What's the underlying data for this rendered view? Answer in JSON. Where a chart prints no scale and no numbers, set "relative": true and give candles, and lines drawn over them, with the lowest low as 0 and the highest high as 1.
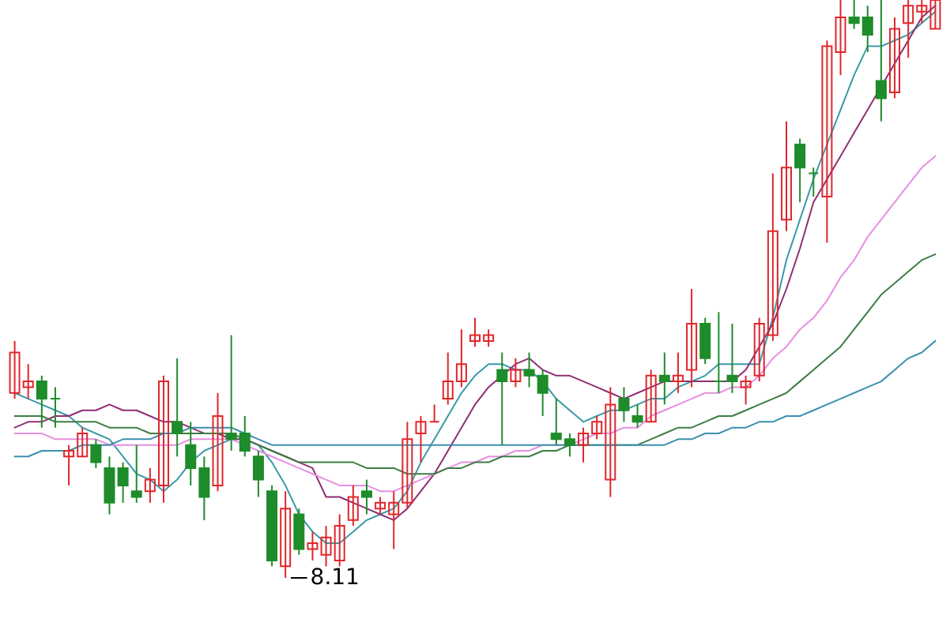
{
  "chart_data": {
    "type": "candlestick",
    "relative": true,
    "categories": [
      null,
      null,
      null,
      null,
      null,
      null,
      null,
      null,
      null,
      null,
      null,
      null,
      null,
      null,
      null,
      null,
      null,
      null,
      null,
      null,
      null,
      null,
      null,
      null,
      null,
      null,
      null,
      null,
      null,
      null,
      null,
      null,
      null,
      null,
      null,
      null,
      null,
      null,
      null,
      null,
      null,
      null,
      null,
      null,
      null,
      null,
      null,
      null,
      null,
      null,
      null,
      null,
      null,
      null,
      null,
      null,
      null,
      null,
      null,
      null,
      null,
      null,
      null,
      null,
      null,
      null,
      null,
      null,
      null
    ],
    "ohlc": [
      [
        0.32,
        0.41,
        0.31,
        0.39
      ],
      [
        0.33,
        0.37,
        0.31,
        0.34
      ],
      [
        0.34,
        0.35,
        0.26,
        0.31
      ],
      [
        0.31,
        0.33,
        0.26,
        0.31
      ],
      [
        0.21,
        0.23,
        0.16,
        0.22
      ],
      [
        0.21,
        0.26,
        0.21,
        0.25
      ],
      [
        0.23,
        0.24,
        0.19,
        0.2
      ],
      [
        0.19,
        0.21,
        0.11,
        0.13
      ],
      [
        0.19,
        0.2,
        0.13,
        0.16
      ],
      [
        0.15,
        0.23,
        0.13,
        0.14
      ],
      [
        0.15,
        0.19,
        0.13,
        0.17
      ],
      [
        0.16,
        0.35,
        0.13,
        0.34
      ],
      [
        0.27,
        0.38,
        0.21,
        0.25
      ],
      [
        0.23,
        0.27,
        0.16,
        0.19
      ],
      [
        0.19,
        0.21,
        0.1,
        0.14
      ],
      [
        0.16,
        0.32,
        0.15,
        0.28
      ],
      [
        0.25,
        0.42,
        0.22,
        0.24
      ],
      [
        0.25,
        0.28,
        0.21,
        0.22
      ],
      [
        0.21,
        0.22,
        0.14,
        0.17
      ],
      [
        0.15,
        0.16,
        0.02,
        0.03
      ],
      [
        0.02,
        0.15,
        0,
        0.12
      ],
      [
        0.11,
        0.12,
        0.04,
        0.05
      ],
      [
        0.05,
        0.08,
        0.03,
        0.06
      ],
      [
        0.04,
        0.09,
        0.02,
        0.07
      ],
      [
        0.03,
        0.11,
        0.02,
        0.09
      ],
      [
        0.1,
        0.16,
        0.09,
        0.14
      ],
      [
        0.15,
        0.17,
        0.11,
        0.14
      ],
      [
        0.12,
        0.14,
        0.11,
        0.13
      ],
      [
        0.11,
        0.15,
        0.05,
        0.13
      ],
      [
        0.13,
        0.27,
        0.12,
        0.24
      ],
      [
        0.25,
        0.28,
        0.2,
        0.27
      ],
      [
        0.27,
        0.3,
        0.27,
        0.27
      ],
      [
        0.31,
        0.39,
        0.3,
        0.34
      ],
      [
        0.34,
        0.43,
        0.33,
        0.37
      ],
      [
        0.41,
        0.45,
        0.4,
        0.42
      ],
      [
        0.41,
        0.43,
        0.4,
        0.42
      ],
      [
        0.36,
        0.39,
        0.23,
        0.34
      ],
      [
        0.34,
        0.38,
        0.33,
        0.36
      ],
      [
        0.36,
        0.39,
        0.33,
        0.35
      ],
      [
        0.35,
        0.36,
        0.28,
        0.32
      ],
      [
        0.25,
        0.31,
        0.23,
        0.24
      ],
      [
        0.24,
        0.25,
        0.21,
        0.23
      ],
      [
        0.23,
        0.26,
        0.2,
        0.25
      ],
      [
        0.25,
        0.28,
        0.24,
        0.27
      ],
      [
        0.17,
        0.33,
        0.14,
        0.3
      ],
      [
        0.31,
        0.33,
        0.27,
        0.29
      ],
      [
        0.28,
        0.3,
        0.26,
        0.27
      ],
      [
        0.27,
        0.36,
        0.27,
        0.35
      ],
      [
        0.35,
        0.39,
        0.3,
        0.34
      ],
      [
        0.34,
        0.39,
        0.32,
        0.35
      ],
      [
        0.36,
        0.5,
        0.33,
        0.44
      ],
      [
        0.44,
        0.45,
        0.37,
        0.38
      ],
      [
        0.34,
        0.46,
        0.32,
        0.34
      ],
      [
        0.35,
        0.44,
        0.32,
        0.34
      ],
      [
        0.33,
        0.35,
        0.3,
        0.34
      ],
      [
        0.35,
        0.45,
        0.34,
        0.44
      ],
      [
        0.42,
        0.7,
        0.41,
        0.6
      ],
      [
        0.62,
        0.79,
        0.6,
        0.71
      ],
      [
        0.75,
        0.76,
        0.65,
        0.71
      ],
      [
        0.7,
        0.71,
        0.66,
        0.7
      ],
      [
        0.66,
        0.93,
        0.58,
        0.92
      ],
      [
        0.91,
        1,
        0.87,
        0.97
      ],
      [
        0.97,
        1,
        0.95,
        0.96
      ],
      [
        0.97,
        0.99,
        0.91,
        0.94
      ],
      [
        0.86,
        1,
        0.79,
        0.83
      ],
      [
        0.84,
        0.97,
        0.83,
        0.95
      ],
      [
        0.96,
        1,
        0.9,
        0.99
      ],
      [
        0.98,
        1,
        0.96,
        0.99
      ],
      [
        0.95,
        1,
        0.95,
        1
      ]
    ],
    "colors": [
      "#e0262c",
      "#e0262c",
      "#1e8c2a",
      "#1e8c2a",
      "#e0262c",
      "#e0262c",
      "#1e8c2a",
      "#1e8c2a",
      "#1e8c2a",
      "#1e8c2a",
      "#e0262c",
      "#e0262c",
      "#1e8c2a",
      "#1e8c2a",
      "#1e8c2a",
      "#e0262c",
      "#1e8c2a",
      "#1e8c2a",
      "#1e8c2a",
      "#1e8c2a",
      "#e0262c",
      "#1e8c2a",
      "#e0262c",
      "#e0262c",
      "#e0262c",
      "#e0262c",
      "#1e8c2a",
      "#e0262c",
      "#e0262c",
      "#e0262c",
      "#e0262c",
      "#e0262c",
      "#e0262c",
      "#e0262c",
      "#e0262c",
      "#e0262c",
      "#1e8c2a",
      "#e0262c",
      "#1e8c2a",
      "#1e8c2a",
      "#1e8c2a",
      "#1e8c2a",
      "#e0262c",
      "#e0262c",
      "#e0262c",
      "#1e8c2a",
      "#1e8c2a",
      "#e0262c",
      "#1e8c2a",
      "#e0262c",
      "#e0262c",
      "#1e8c2a",
      "#1e8c2a",
      "#1e8c2a",
      "#e0262c",
      "#e0262c",
      "#e0262c",
      "#e0262c",
      "#1e8c2a",
      "#1e8c2a",
      "#e0262c",
      "#e0262c",
      "#1e8c2a",
      "#1e8c2a",
      "#1e8c2a",
      "#e0262c",
      "#e0262c",
      "#e0262c",
      "#e0262c"
    ],
    "series": [
      {
        "type": "line",
        "color": "#3a9aa8",
        "values": [
          0.32,
          0.31,
          0.3,
          0.29,
          0.28,
          0.26,
          0.25,
          0.24,
          0.21,
          0.18,
          0.17,
          0.15,
          0.17,
          0.2,
          0.22,
          0.23,
          0.24,
          0.24,
          0.23,
          0.2,
          0.16,
          0.11,
          0.08,
          0.06,
          0.06,
          0.08,
          0.1,
          0.11,
          0.12,
          0.15,
          0.2,
          0.24,
          0.28,
          0.32,
          0.35,
          0.37,
          0.37,
          0.36,
          0.36,
          0.34,
          0.31,
          0.29,
          0.27,
          0.28,
          0.29,
          0.29,
          0.3,
          0.31,
          0.31,
          0.33,
          0.34,
          0.35,
          0.37,
          0.37,
          0.37,
          0.37,
          0.45,
          0.55,
          0.62,
          0.69,
          0.75,
          0.81,
          0.87,
          0.92,
          0.92,
          0.93,
          0.94,
          0.96,
          0.98
        ]
      },
      {
        "type": "line",
        "color": "#8e2f72",
        "values": [
          0.26,
          0.27,
          0.27,
          0.28,
          0.28,
          0.29,
          0.29,
          0.3,
          0.29,
          0.29,
          0.28,
          0.27,
          0.27,
          0.26,
          0.25,
          0.25,
          0.24,
          0.24,
          0.23,
          0.22,
          0.21,
          0.2,
          0.19,
          0.14,
          0.14,
          0.13,
          0.12,
          0.11,
          0.1,
          0.12,
          0.15,
          0.18,
          0.22,
          0.26,
          0.3,
          0.33,
          0.35,
          0.37,
          0.38,
          0.36,
          0.35,
          0.35,
          0.34,
          0.33,
          0.32,
          0.31,
          0.32,
          0.33,
          0.34,
          0.34,
          0.34,
          0.34,
          0.34,
          0.34,
          0.36,
          0.4,
          0.44,
          0.5,
          0.57,
          0.65,
          0.69,
          0.73,
          0.77,
          0.81,
          0.85,
          0.89,
          0.93,
          0.97,
          0.99
        ]
      },
      {
        "type": "line",
        "color": "#e68fe0",
        "values": [
          0.25,
          0.25,
          0.25,
          0.24,
          0.24,
          0.24,
          0.24,
          0.23,
          0.23,
          0.23,
          0.23,
          0.23,
          0.23,
          0.24,
          0.24,
          0.24,
          0.24,
          0.23,
          0.22,
          0.21,
          0.2,
          0.19,
          0.18,
          0.17,
          0.16,
          0.16,
          0.16,
          0.15,
          0.15,
          0.16,
          0.17,
          0.18,
          0.19,
          0.2,
          0.2,
          0.21,
          0.21,
          0.22,
          0.22,
          0.23,
          0.23,
          0.23,
          0.24,
          0.25,
          0.25,
          0.26,
          0.26,
          0.28,
          0.29,
          0.3,
          0.31,
          0.32,
          0.32,
          0.33,
          0.33,
          0.35,
          0.38,
          0.4,
          0.43,
          0.45,
          0.48,
          0.52,
          0.55,
          0.59,
          0.62,
          0.65,
          0.68,
          0.71,
          0.73
        ]
      },
      {
        "type": "line",
        "color": "#3d7d45",
        "values": [
          0.28,
          0.28,
          0.28,
          0.27,
          0.27,
          0.27,
          0.27,
          0.26,
          0.26,
          0.26,
          0.25,
          0.25,
          0.25,
          0.25,
          0.25,
          0.25,
          0.25,
          0.24,
          0.23,
          0.22,
          0.21,
          0.2,
          0.2,
          0.2,
          0.2,
          0.2,
          0.19,
          0.19,
          0.19,
          0.18,
          0.18,
          0.18,
          0.19,
          0.19,
          0.2,
          0.2,
          0.21,
          0.21,
          0.21,
          0.22,
          0.22,
          0.23,
          0.23,
          0.23,
          0.23,
          0.23,
          0.23,
          0.24,
          0.25,
          0.26,
          0.26,
          0.27,
          0.28,
          0.28,
          0.29,
          0.3,
          0.31,
          0.32,
          0.34,
          0.36,
          0.38,
          0.4,
          0.43,
          0.46,
          0.49,
          0.51,
          0.53,
          0.55,
          0.56
        ]
      },
      {
        "type": "line",
        "color": "#3c8fb0",
        "values": [
          0.21,
          0.21,
          0.22,
          0.22,
          0.22,
          0.23,
          0.23,
          0.23,
          0.24,
          0.24,
          0.24,
          0.25,
          0.25,
          0.26,
          0.26,
          0.26,
          0.26,
          0.25,
          0.24,
          0.23,
          0.23,
          0.23,
          0.23,
          0.23,
          0.23,
          0.23,
          0.23,
          0.23,
          0.23,
          0.23,
          0.23,
          0.23,
          0.23,
          0.23,
          0.23,
          0.23,
          0.23,
          0.23,
          0.23,
          0.23,
          0.23,
          0.23,
          0.23,
          0.23,
          0.23,
          0.23,
          0.23,
          0.23,
          0.23,
          0.24,
          0.24,
          0.25,
          0.25,
          0.26,
          0.26,
          0.27,
          0.27,
          0.28,
          0.28,
          0.29,
          0.3,
          0.31,
          0.32,
          0.33,
          0.34,
          0.36,
          0.38,
          0.39,
          0.41
        ]
      }
    ],
    "annotations": [
      "8.11"
    ]
  }
}
